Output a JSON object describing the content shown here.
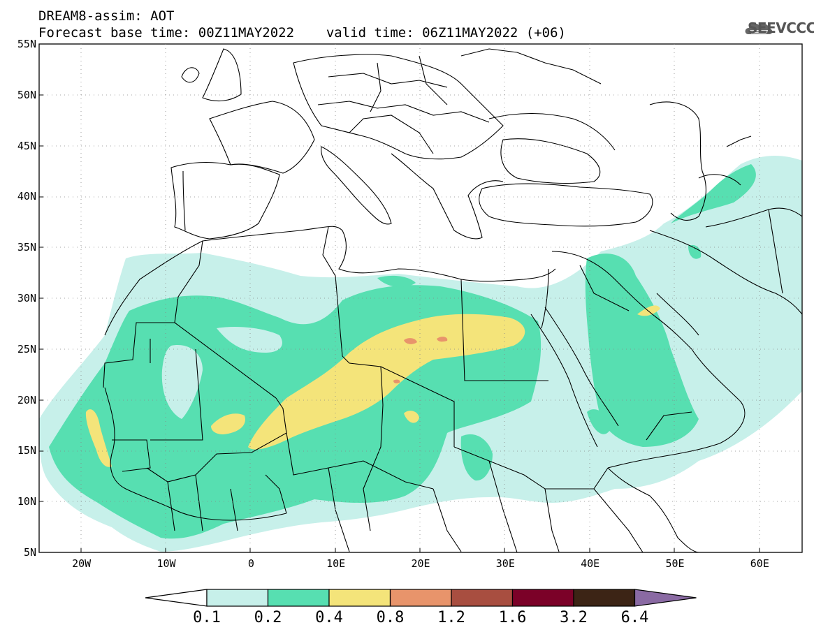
{
  "header": {
    "title": "DREAM8-assim: AOT",
    "base_time": "Forecast base time: 00Z11MAY2022",
    "valid_time": "valid time: 06Z11MAY2022 (+06)",
    "logo_text": "SEEVCCC"
  },
  "map": {
    "lon_range": [
      -25,
      65
    ],
    "lat_range": [
      5,
      55
    ],
    "lat_labels": [
      "55N",
      "50N",
      "45N",
      "40N",
      "35N",
      "30N",
      "25N",
      "20N",
      "15N",
      "10N",
      "5N"
    ],
    "lon_labels": [
      "20W",
      "10W",
      "0",
      "10E",
      "20E",
      "30E",
      "40E",
      "50E",
      "60E"
    ]
  },
  "colorbar": {
    "labels": [
      "0.1",
      "0.2",
      "0.4",
      "0.8",
      "1.2",
      "1.6",
      "3.2",
      "6.4"
    ],
    "colors": [
      "#ffffff",
      "#c7f0ea",
      "#57dfb1",
      "#f4e47a",
      "#e8946b",
      "#a84e40",
      "#7b0128",
      "#3c2415",
      "#8a6aa3"
    ]
  }
}
